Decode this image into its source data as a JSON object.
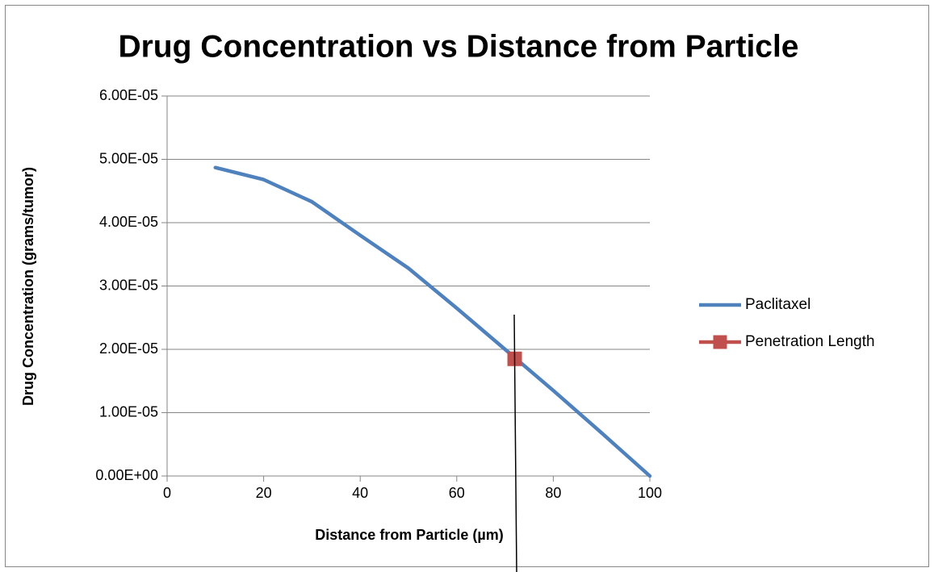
{
  "chart_data": {
    "type": "scatter",
    "title": "Drug Concentration vs Distance from Particle",
    "x_label": "Distance from Particle (µm)",
    "y_label": "Drug Concentration (grams/tumor)",
    "series": [
      {
        "name": "Paclitaxel",
        "color": "#4f81bd",
        "mode": "line",
        "x": [
          10,
          20,
          30,
          40,
          50,
          60,
          70,
          80,
          90,
          100
        ],
        "values": [
          4.87e-05,
          4.68e-05,
          4.33e-05,
          3.8e-05,
          3.28e-05,
          2.65e-05,
          2e-05,
          1.35e-05,
          6.8e-06,
          0
        ]
      },
      {
        "name": "Penetration Length",
        "color": "#c0504d",
        "mode": "marker",
        "marker": "square",
        "x": [
          72
        ],
        "values": [
          1.85e-05
        ]
      }
    ],
    "xlim": [
      0,
      100
    ],
    "xticks": [
      0,
      20,
      40,
      60,
      80,
      100
    ],
    "ylim": [
      0,
      6e-05
    ],
    "yticks": [
      {
        "value": 0,
        "label": "0.00E+00"
      },
      {
        "value": 1e-05,
        "label": "1.00E-05"
      },
      {
        "value": 2e-05,
        "label": "2.00E-05"
      },
      {
        "value": 3e-05,
        "label": "3.00E-05"
      },
      {
        "value": 4e-05,
        "label": "4.00E-05"
      },
      {
        "value": 5e-05,
        "label": "5.00E-05"
      },
      {
        "value": 6e-05,
        "label": "6.00E-05"
      }
    ],
    "grid": true,
    "legend": "right"
  }
}
